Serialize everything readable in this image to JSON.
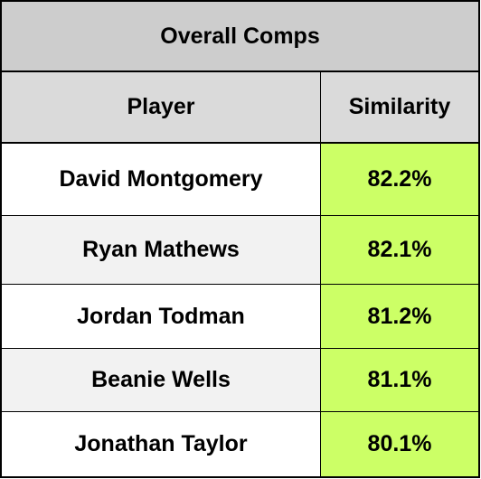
{
  "table": {
    "title": "Overall Comps",
    "columns": {
      "player": "Player",
      "similarity": "Similarity"
    },
    "rows": [
      {
        "player": "David Montgomery",
        "similarity": "82.2%"
      },
      {
        "player": "Ryan Mathews",
        "similarity": "82.1%"
      },
      {
        "player": "Jordan Todman",
        "similarity": "81.2%"
      },
      {
        "player": "Beanie Wells",
        "similarity": "81.1%"
      },
      {
        "player": "Jonathan Taylor",
        "similarity": "80.1%"
      }
    ]
  },
  "colors": {
    "title_background": "#cdcdcd",
    "header_background": "#dadada",
    "similarity_highlight": "#ccff66",
    "alternate_row": "#f2f2f2"
  }
}
